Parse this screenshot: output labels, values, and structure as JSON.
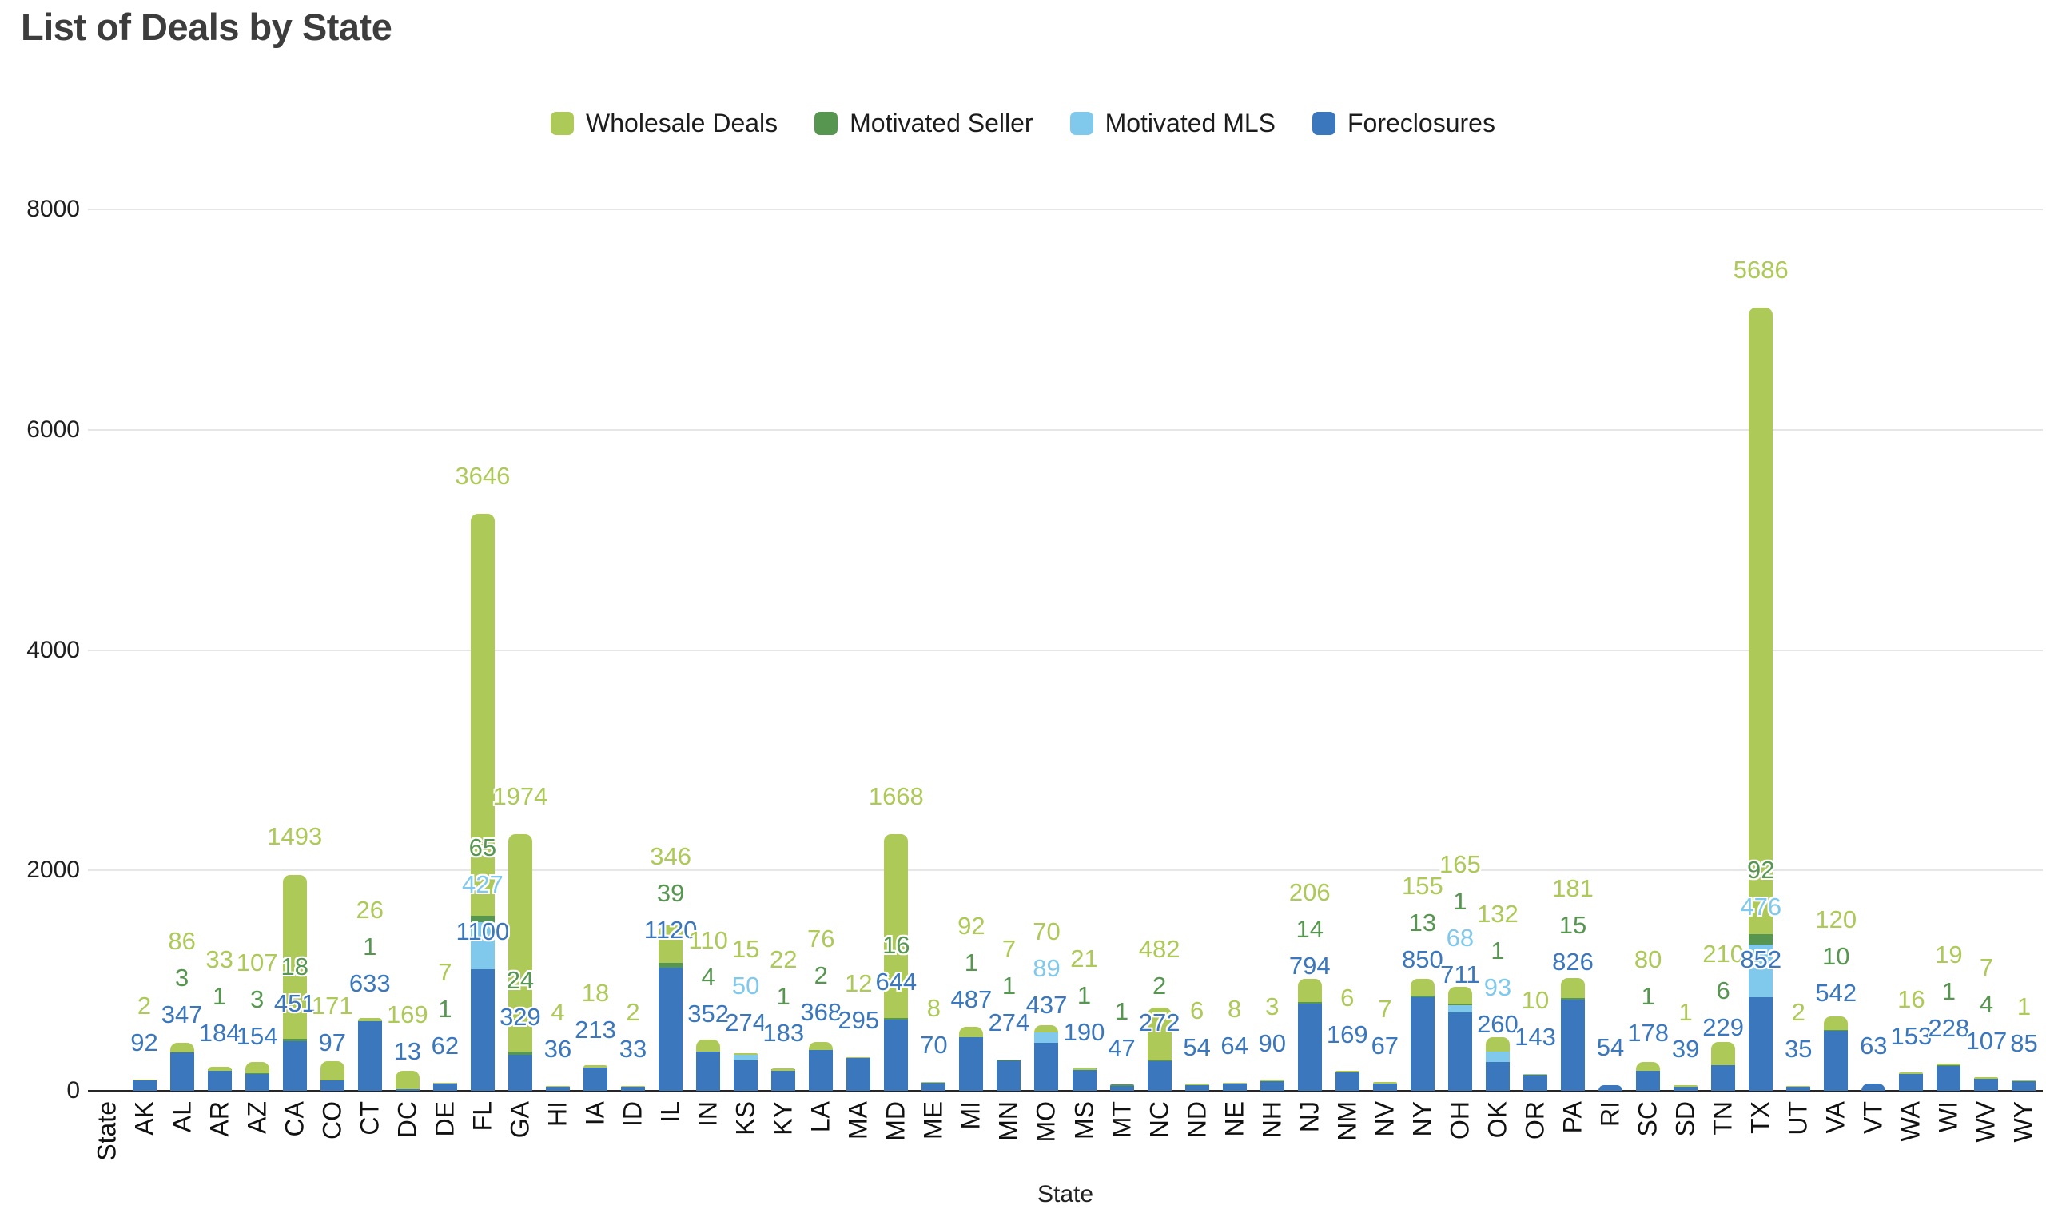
{
  "title": "List of Deals by State",
  "axes": {
    "x_title": "State",
    "y_ticks": [
      0,
      2000,
      4000,
      6000,
      8000
    ],
    "y_max": 8000
  },
  "chart_data": {
    "type": "bar",
    "stacked": true,
    "title": "List of Deals by State",
    "xlabel": "State",
    "ylabel": "",
    "ylim": [
      0,
      8000
    ],
    "legend_position": "top",
    "grid": true,
    "categories": [
      "State",
      "AK",
      "AL",
      "AR",
      "AZ",
      "CA",
      "CO",
      "CT",
      "DC",
      "DE",
      "FL",
      "GA",
      "HI",
      "IA",
      "ID",
      "IL",
      "IN",
      "KS",
      "KY",
      "LA",
      "MA",
      "MD",
      "ME",
      "MI",
      "MN",
      "MO",
      "MS",
      "MT",
      "NC",
      "ND",
      "NE",
      "NH",
      "NJ",
      "NM",
      "NV",
      "NY",
      "OH",
      "OK",
      "OR",
      "PA",
      "RI",
      "SC",
      "SD",
      "TN",
      "TX",
      "UT",
      "VA",
      "VT",
      "WA",
      "WI",
      "WV",
      "WY"
    ],
    "series": [
      {
        "name": "Wholesale Deals",
        "color": "#adc957",
        "values": [
          0,
          2,
          86,
          33,
          107,
          1493,
          171,
          26,
          169,
          7,
          3646,
          1974,
          4,
          18,
          2,
          346,
          110,
          15,
          22,
          76,
          12,
          1668,
          8,
          92,
          7,
          70,
          21,
          0,
          482,
          6,
          8,
          3,
          206,
          6,
          7,
          155,
          165,
          132,
          10,
          181,
          0,
          80,
          1,
          210,
          5686,
          2,
          120,
          0,
          16,
          19,
          7,
          1
        ]
      },
      {
        "name": "Motivated Seller",
        "color": "#579651",
        "values": [
          0,
          0,
          3,
          1,
          3,
          18,
          0,
          1,
          0,
          1,
          65,
          24,
          0,
          0,
          0,
          39,
          4,
          0,
          1,
          2,
          0,
          16,
          0,
          1,
          1,
          0,
          1,
          1,
          2,
          0,
          0,
          0,
          14,
          0,
          0,
          13,
          1,
          1,
          0,
          15,
          0,
          1,
          0,
          6,
          92,
          0,
          10,
          0,
          0,
          1,
          4,
          0
        ]
      },
      {
        "name": "Motivated MLS",
        "color": "#80c9ed",
        "values": [
          0,
          0,
          0,
          0,
          0,
          0,
          0,
          0,
          0,
          0,
          427,
          0,
          0,
          0,
          0,
          0,
          0,
          50,
          0,
          0,
          0,
          0,
          0,
          0,
          0,
          89,
          0,
          0,
          0,
          0,
          0,
          0,
          0,
          0,
          0,
          0,
          68,
          93,
          0,
          0,
          0,
          0,
          0,
          0,
          476,
          0,
          0,
          0,
          0,
          0,
          0,
          0
        ]
      },
      {
        "name": "Foreclosures",
        "color": "#3a77bc",
        "values": [
          0,
          92,
          347,
          184,
          154,
          451,
          97,
          633,
          13,
          62,
          1100,
          329,
          36,
          213,
          33,
          1120,
          352,
          274,
          183,
          368,
          295,
          644,
          70,
          487,
          274,
          437,
          190,
          47,
          272,
          54,
          64,
          90,
          794,
          169,
          67,
          850,
          711,
          260,
          143,
          826,
          54,
          178,
          39,
          229,
          852,
          35,
          542,
          63,
          153,
          228,
          107,
          85
        ]
      }
    ]
  }
}
